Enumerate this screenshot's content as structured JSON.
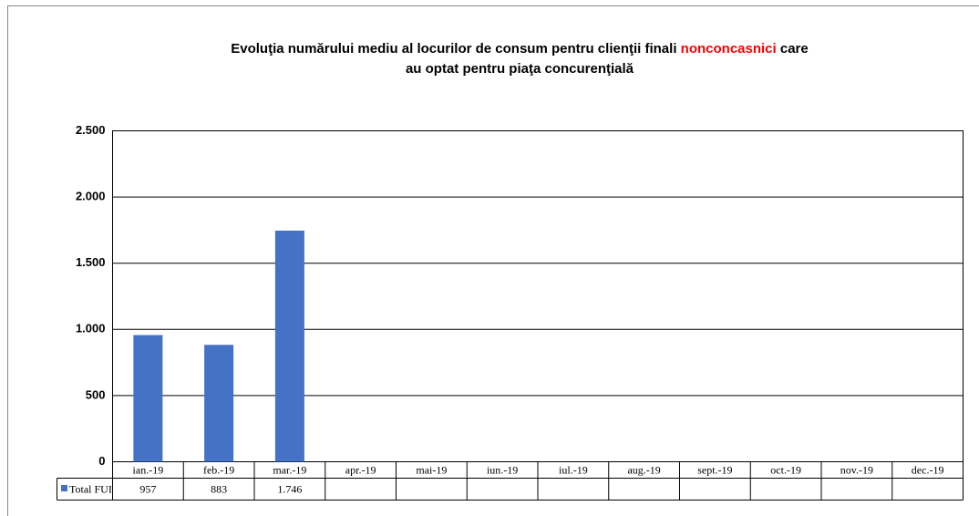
{
  "chart_data": {
    "type": "bar",
    "title": {
      "line1_start": "Evoluţia numărului mediu al locurilor de consum pentru clienţii finali",
      "highlight": "nonconcasnici",
      "line1_end": "care",
      "line2": "au optat pentru piaţa concurenţială"
    },
    "categories": [
      "ian.-19",
      "feb.-19",
      "mar.-19",
      "apr.-19",
      "mai-19",
      "iun.-19",
      "iul.-19",
      "aug.-19",
      "sept.-19",
      "oct.-19",
      "nov.-19",
      "dec.-19"
    ],
    "series": [
      {
        "name": "Total FUI",
        "color": "#4472c4",
        "values": [
          957,
          883,
          1746,
          null,
          null,
          null,
          null,
          null,
          null,
          null,
          null,
          null
        ],
        "value_labels": [
          "957",
          "883",
          "1.746",
          null,
          null,
          null,
          null,
          null,
          null,
          null,
          null,
          null
        ]
      }
    ],
    "highlight_color": "#ff0000",
    "ylim": [
      0,
      2500
    ],
    "yticks": [
      0,
      500,
      {
        "value": 1000,
        "label": "1.000"
      },
      {
        "value": 1500,
        "label": "1.500"
      },
      {
        "value": 2000,
        "label": "2.000"
      },
      {
        "value": 2500,
        "label": "2.500"
      }
    ],
    "grid": true,
    "data_table": true
  }
}
